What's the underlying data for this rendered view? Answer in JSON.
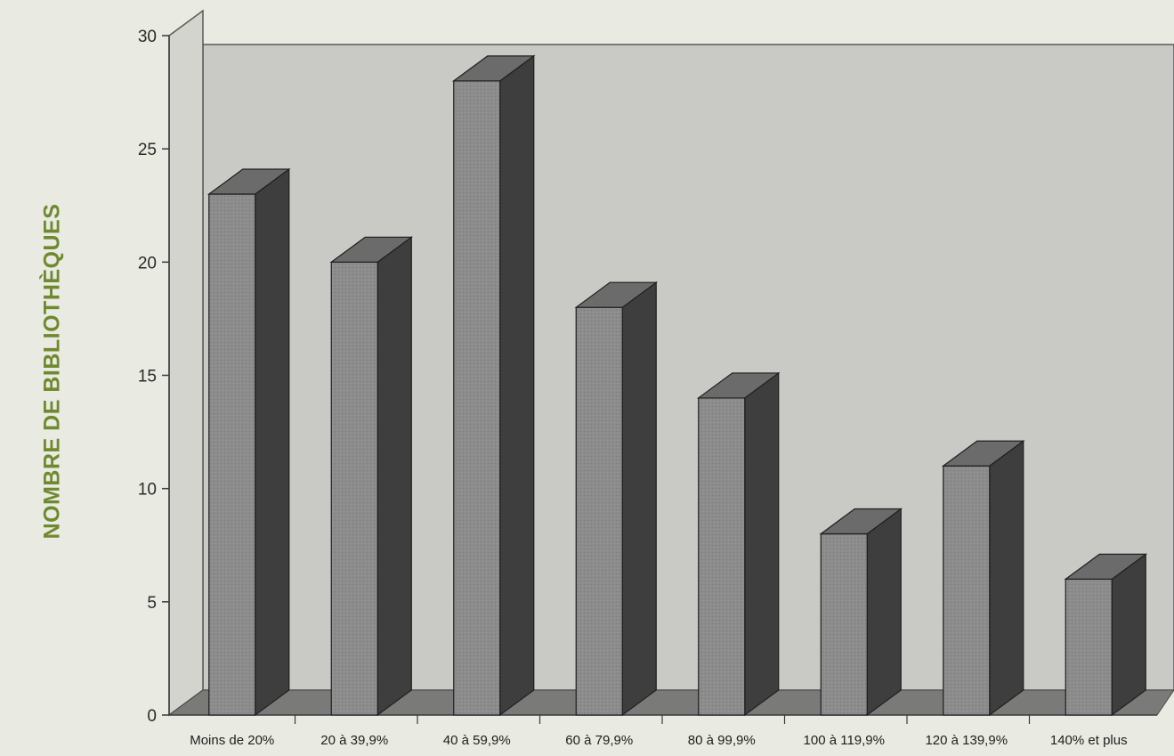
{
  "chart_data": {
    "type": "bar",
    "title": "",
    "xlabel": "",
    "ylabel": "NOMBRE DE BIBLIOTHÈQUES",
    "categories": [
      "Moins de 20%",
      "20 à 39,9%",
      "40 à 59,9%",
      "60 à 79,9%",
      "80 à 99,9%",
      "100 à 119,9%",
      "120 à 139,9%",
      "140% et plus"
    ],
    "values": [
      23,
      20,
      28,
      18,
      14,
      8,
      11,
      6
    ],
    "ylim": [
      0,
      30
    ],
    "yticks": [
      0,
      5,
      10,
      15,
      20,
      25,
      30
    ],
    "grid": false,
    "legend": "none",
    "style": "3d-bar",
    "colors": {
      "bar_front": "#8a8a8a",
      "bar_top": "#6b6b6b",
      "bar_side": "#3e3e3e",
      "back_wall": "#c9cac5",
      "floor": "#7a7a78",
      "label_accent": "#6f8a2e"
    }
  }
}
